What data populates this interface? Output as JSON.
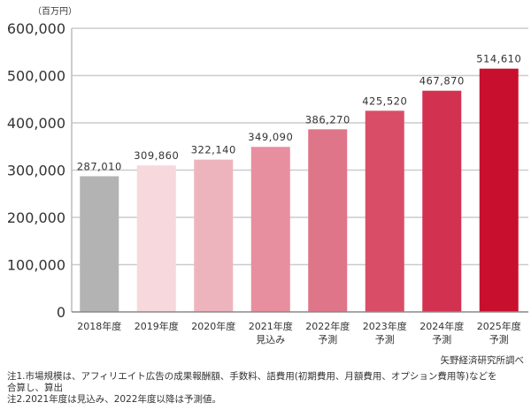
{
  "chart_data": {
    "type": "bar",
    "unit_label": "（百万円）",
    "categories": [
      [
        "2018年度"
      ],
      [
        "2019年度"
      ],
      [
        "2020年度"
      ],
      [
        "2021年度",
        "見込み"
      ],
      [
        "2022年度",
        "予測"
      ],
      [
        "2023年度",
        "予測"
      ],
      [
        "2024年度",
        "予測"
      ],
      [
        "2025年度",
        "予測"
      ]
    ],
    "values": [
      287010,
      309860,
      322140,
      349090,
      386270,
      425520,
      467870,
      514610
    ],
    "value_labels": [
      "287,010",
      "309,860",
      "322,140",
      "349,090",
      "386,270",
      "425,520",
      "467,870",
      "514,610"
    ],
    "bar_colors": [
      "#b3b3b3",
      "#f6d8dd",
      "#eeb4be",
      "#e78f9f",
      "#df7589",
      "#d94d67",
      "#d33150",
      "#c8102e"
    ],
    "ylim": [
      0,
      600000
    ],
    "yticks": [
      0,
      100000,
      200000,
      300000,
      400000,
      500000,
      600000
    ],
    "ytick_labels": [
      "0",
      "100,000",
      "200,000",
      "300,000",
      "400,000",
      "500,000",
      "600,000"
    ],
    "grid": true,
    "grid_color": "#cccccc"
  },
  "source": "矢野経済研究所調べ",
  "notes": [
    "注1.市場規模は、アフィリエイト広告の成果報酬額、手数料、語費用(初期費用、月額費用、オプション費用等)などを",
    "合算し、算出",
    "注2.2021年度は見込み、2022年度以降は予測値。"
  ]
}
